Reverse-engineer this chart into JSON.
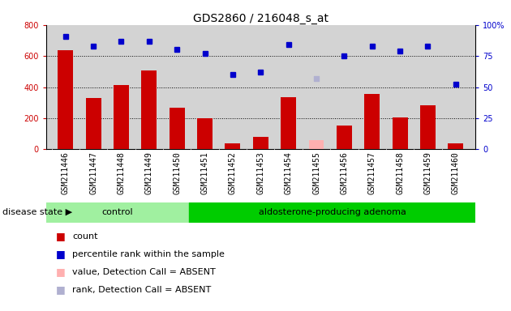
{
  "title": "GDS2860 / 216048_s_at",
  "samples": [
    "GSM211446",
    "GSM211447",
    "GSM211448",
    "GSM211449",
    "GSM211450",
    "GSM211451",
    "GSM211452",
    "GSM211453",
    "GSM211454",
    "GSM211455",
    "GSM211456",
    "GSM211457",
    "GSM211458",
    "GSM211459",
    "GSM211460"
  ],
  "count_values": [
    635,
    330,
    415,
    505,
    265,
    200,
    38,
    78,
    335,
    60,
    155,
    355,
    207,
    285,
    40
  ],
  "percentile_values": [
    91,
    83,
    87,
    87,
    80,
    77,
    60,
    62,
    84,
    57,
    75,
    83,
    79,
    83,
    52
  ],
  "absent_value_idx": [
    9
  ],
  "absent_rank_idx": [
    9
  ],
  "absent_value": [
    60
  ],
  "absent_rank": [
    57
  ],
  "n_control": 5,
  "n_adenoma": 10,
  "group_control_label": "control",
  "group_adenoma_label": "aldosterone-producing adenoma",
  "disease_state_label": "disease state",
  "legend_items": [
    "count",
    "percentile rank within the sample",
    "value, Detection Call = ABSENT",
    "rank, Detection Call = ABSENT"
  ],
  "ylim_left": [
    0,
    800
  ],
  "ylim_right": [
    0,
    100
  ],
  "yticks_left": [
    0,
    200,
    400,
    600,
    800
  ],
  "yticks_right": [
    0,
    25,
    50,
    75,
    100
  ],
  "bar_color": "#cc0000",
  "dot_color": "#0000cc",
  "absent_bar_color": "#ffb0b0",
  "absent_dot_color": "#b0b0d0",
  "bg_color": "#d3d3d3",
  "control_bg": "#a0f0a0",
  "adenoma_bg": "#00cc00",
  "grid_color": "#000000",
  "title_fontsize": 10,
  "tick_fontsize": 7,
  "label_fontsize": 8,
  "legend_fontsize": 8
}
